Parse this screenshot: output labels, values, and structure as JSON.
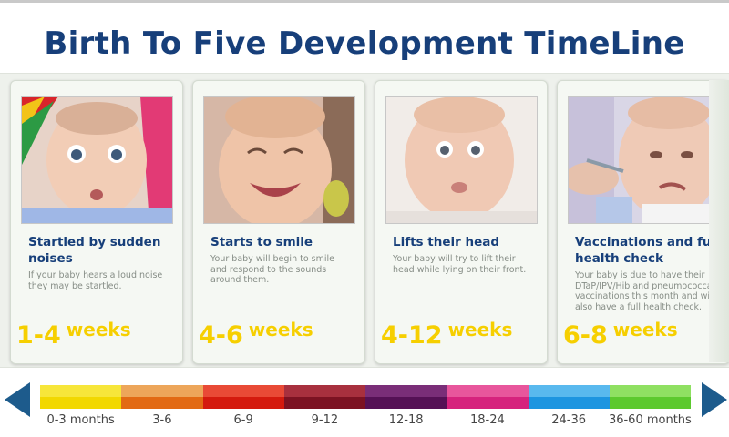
{
  "title": "Birth To Five Development TimeLine",
  "cards": [
    {
      "title": "Startled by sudden noises",
      "description": "If your baby hears a loud noise they may be startled.",
      "age_number": "1-4",
      "age_unit": "weeks",
      "photo_icon": "baby-surprised-photo"
    },
    {
      "title": "Starts to smile",
      "description": "Your baby will begin to smile and respond to the sounds around them.",
      "age_number": "4-6",
      "age_unit": "weeks",
      "photo_icon": "baby-smiling-photo"
    },
    {
      "title": "Lifts their head",
      "description": "Your baby will try to lift their head while lying on their front.",
      "age_number": "4-12",
      "age_unit": "weeks",
      "photo_icon": "baby-lifting-head-photo"
    },
    {
      "title": "Vaccinations and full health check",
      "description": "Your baby is due to have their DTaP/IPV/Hib and pneumococcal vaccinations this month and will also have a full health check.",
      "age_number": "6-8",
      "age_unit": "weeks",
      "photo_icon": "baby-vaccination-photo"
    }
  ],
  "timeline": {
    "segments": [
      {
        "label": "0-3 months",
        "color_top": "#f7e63a",
        "color_bottom": "#f2d800"
      },
      {
        "label": "3-6",
        "color_top": "#eda65a",
        "color_bottom": "#e26a14"
      },
      {
        "label": "6-9",
        "color_top": "#e94a36",
        "color_bottom": "#d41a0e"
      },
      {
        "label": "9-12",
        "color_top": "#a8303e",
        "color_bottom": "#7c1222"
      },
      {
        "label": "12-18",
        "color_top": "#7a2e78",
        "color_bottom": "#551155"
      },
      {
        "label": "18-24",
        "color_top": "#e8569c",
        "color_bottom": "#d6237d"
      },
      {
        "label": "24-36",
        "color_top": "#59b9ee",
        "color_bottom": "#1d95e0"
      },
      {
        "label": "36-60 months",
        "color_top": "#8fe062",
        "color_bottom": "#5cc92e"
      }
    ]
  },
  "nav": {
    "prev_icon": "arrow-left-icon",
    "next_icon": "arrow-right-icon",
    "arrow_color": "#1d5b8c"
  }
}
